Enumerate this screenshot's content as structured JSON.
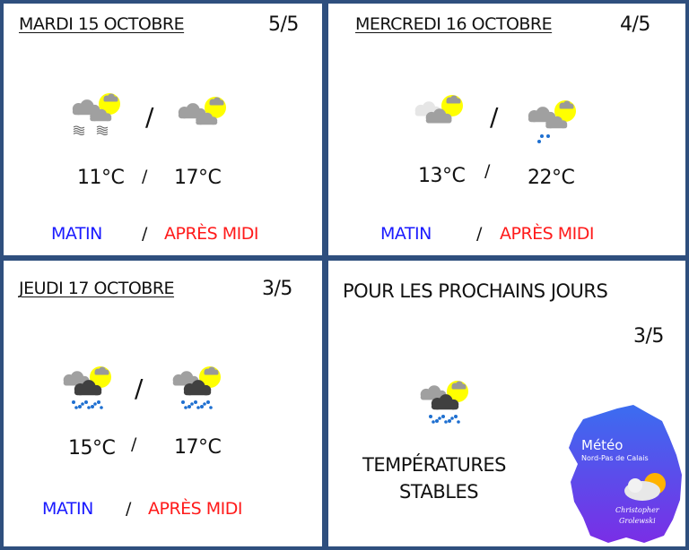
{
  "days": [
    {
      "date": "MARDI 15 OCTOBRE",
      "rating": "5/5",
      "morning_icon": "fog-cloud-sun-icon",
      "afternoon_icon": "cloud-sun-icon",
      "morning_temp": "11°C",
      "afternoon_temp": "17°C",
      "sep": "/",
      "morning_label": "MATIN",
      "afternoon_label": "APRÈS MIDI"
    },
    {
      "date": "MERCREDI 16 OCTOBRE",
      "rating": "4/5",
      "morning_icon": "cloud-sun-icon",
      "afternoon_icon": "cloud-sun-rain-icon",
      "morning_temp": "13°C",
      "afternoon_temp": "22°C",
      "sep": "/",
      "morning_label": "MATIN",
      "afternoon_label": "APRÈS MIDI"
    },
    {
      "date": "JEUDI 17 OCTOBRE",
      "rating": "3/5",
      "morning_icon": "storm-rain-sun-icon",
      "afternoon_icon": "storm-rain-sun-icon",
      "morning_temp": "15°C",
      "afternoon_temp": "17°C",
      "sep": "/",
      "morning_label": "MATIN",
      "afternoon_label": "APRÈS MIDI"
    }
  ],
  "outlook": {
    "title": "POUR LES PROCHAINS JOURS",
    "rating": "3/5",
    "icon": "storm-rain-sun-icon",
    "text_line1": "TEMPÉRATURES",
    "text_line2": "STABLES"
  },
  "logo": {
    "title": "Météo",
    "subtitle": "Nord-Pas de Calais",
    "author1": "Christopher",
    "author2": "Grolewski"
  },
  "colors": {
    "border": "#2f4f7e",
    "morning": "#1a1aff",
    "afternoon": "#ff1a1a",
    "sun": "#ffff00",
    "cloud": "#a0a0a0"
  }
}
